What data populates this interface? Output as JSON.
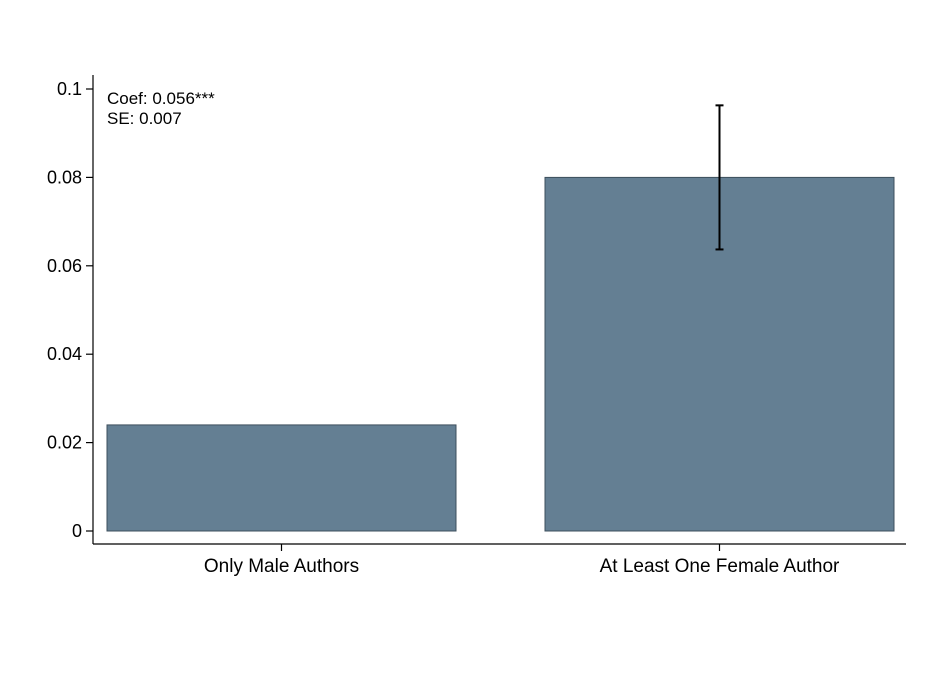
{
  "chart_data": {
    "type": "bar",
    "title": "",
    "xlabel": "",
    "ylabel": "",
    "categories": [
      "Only Male Authors",
      "At Least One Female Author"
    ],
    "values": [
      0.024,
      0.08
    ],
    "error_bars": [
      null,
      {
        "low": 0.0637,
        "high": 0.0963
      }
    ],
    "ylim": [
      0,
      0.1
    ],
    "yticks": [
      0,
      0.02,
      0.04,
      0.06,
      0.08,
      0.1
    ],
    "ytick_labels": [
      "0",
      "0.02",
      "0.04",
      "0.06",
      "0.08",
      "0.1"
    ],
    "bar_color": "#647f93",
    "grid": false,
    "annotations": [
      "Coef: 0.056***",
      "SE: 0.007"
    ]
  }
}
